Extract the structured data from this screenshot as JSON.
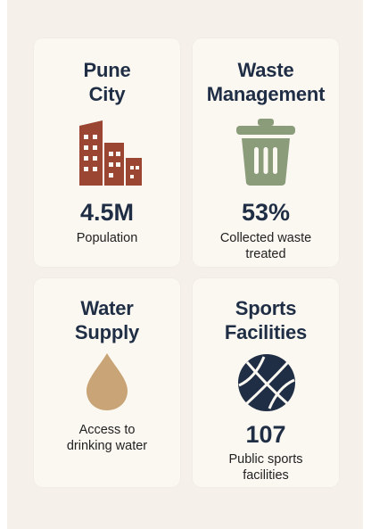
{
  "cards": [
    {
      "title": "Pune\nCity",
      "value": "4.5M",
      "label": "Population",
      "icon": "buildings-icon",
      "color": "#9b4632"
    },
    {
      "title": "Waste\nManagement",
      "value": "53%",
      "label": "Collected waste\ntreated",
      "icon": "trash-bin-icon",
      "color": "#8b9c7a"
    },
    {
      "title": "Water\nSupply",
      "value": "",
      "label": "Access to\ndrinking water",
      "icon": "water-drop-icon",
      "color": "#c9a476"
    },
    {
      "title": "Sports\nFacilities",
      "value": "107",
      "label": "Public sports\nfacilities",
      "icon": "basketball-icon",
      "color": "#1f2e45"
    }
  ]
}
